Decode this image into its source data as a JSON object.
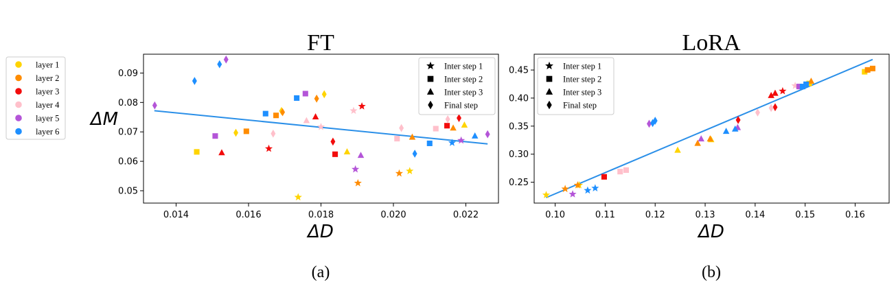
{
  "figure": {
    "panel_labels": [
      "(a)",
      "(b)"
    ],
    "legend_layers": [
      {
        "label": "layer 1",
        "color": "#FFD400"
      },
      {
        "label": "layer 2",
        "color": "#FF8C00"
      },
      {
        "label": "layer 3",
        "color": "#F20C0C"
      },
      {
        "label": "layer 4",
        "color": "#FFC0CB"
      },
      {
        "label": "layer 5",
        "color": "#B455D8"
      },
      {
        "label": "layer 6",
        "color": "#1E8FFF"
      }
    ],
    "legend_steps": [
      {
        "label": "Inter step 1",
        "marker": "star"
      },
      {
        "label": "Inter step 2",
        "marker": "square"
      },
      {
        "label": "Inter step 3",
        "marker": "triangle"
      },
      {
        "label": "Final step",
        "marker": "diamond"
      }
    ],
    "fit_line_color": "#2A8FE8"
  },
  "chart_data": [
    {
      "type": "scatter",
      "title": "FT",
      "xlabel": "ΔD",
      "ylabel": "ΔM",
      "xlim": [
        0.0131,
        0.0229
      ],
      "ylim": [
        0.0458,
        0.0964
      ],
      "xticks": [
        0.014,
        0.016,
        0.018,
        0.02,
        0.022
      ],
      "xtick_labels": [
        "0.014",
        "0.016",
        "0.018",
        "0.020",
        "0.022"
      ],
      "yticks": [
        0.05,
        0.06,
        0.07,
        0.08,
        0.09
      ],
      "ytick_labels": [
        "0.05",
        "0.06",
        "0.07",
        "0.08",
        "0.09"
      ],
      "grid": false,
      "legend_position": "top-right",
      "fit_line": [
        [
          0.0134,
          0.0772
        ],
        [
          0.0226,
          0.0659
        ]
      ],
      "points": [
        {
          "layer": 1,
          "step": "star",
          "x": 0.01737,
          "y": 0.0478
        },
        {
          "layer": 1,
          "step": "square",
          "x": 0.01457,
          "y": 0.0632
        },
        {
          "layer": 1,
          "step": "triangle",
          "x": 0.01872,
          "y": 0.0632
        },
        {
          "layer": 1,
          "step": "diamond",
          "x": 0.01565,
          "y": 0.0697
        },
        {
          "layer": 1,
          "step": "star",
          "x": 0.02045,
          "y": 0.0567
        },
        {
          "layer": 1,
          "step": "diamond",
          "x": 0.01691,
          "y": 0.0771
        },
        {
          "layer": 1,
          "step": "diamond",
          "x": 0.01809,
          "y": 0.0828
        },
        {
          "layer": 1,
          "step": "triangle",
          "x": 0.02196,
          "y": 0.0723
        },
        {
          "layer": 2,
          "step": "square",
          "x": 0.01594,
          "y": 0.0702
        },
        {
          "layer": 2,
          "step": "square",
          "x": 0.01676,
          "y": 0.0756
        },
        {
          "layer": 2,
          "step": "diamond",
          "x": 0.01694,
          "y": 0.0767
        },
        {
          "layer": 2,
          "step": "diamond",
          "x": 0.01788,
          "y": 0.0813
        },
        {
          "layer": 2,
          "step": "star",
          "x": 0.01902,
          "y": 0.0526
        },
        {
          "layer": 2,
          "step": "star",
          "x": 0.02016,
          "y": 0.0559
        },
        {
          "layer": 2,
          "step": "triangle",
          "x": 0.02052,
          "y": 0.0682
        },
        {
          "layer": 2,
          "step": "triangle",
          "x": 0.02165,
          "y": 0.0713
        },
        {
          "layer": 3,
          "step": "triangle",
          "x": 0.01526,
          "y": 0.0629
        },
        {
          "layer": 3,
          "step": "star",
          "x": 0.01656,
          "y": 0.0643
        },
        {
          "layer": 3,
          "step": "triangle",
          "x": 0.01785,
          "y": 0.0751
        },
        {
          "layer": 3,
          "step": "diamond",
          "x": 0.01833,
          "y": 0.0667
        },
        {
          "layer": 3,
          "step": "square",
          "x": 0.01839,
          "y": 0.0624
        },
        {
          "layer": 3,
          "step": "star",
          "x": 0.01913,
          "y": 0.0787
        },
        {
          "layer": 3,
          "step": "square",
          "x": 0.02148,
          "y": 0.0721
        },
        {
          "layer": 3,
          "step": "diamond",
          "x": 0.02181,
          "y": 0.0747
        },
        {
          "layer": 4,
          "step": "diamond",
          "x": 0.01668,
          "y": 0.0694
        },
        {
          "layer": 4,
          "step": "triangle",
          "x": 0.0176,
          "y": 0.0738
        },
        {
          "layer": 4,
          "step": "star",
          "x": 0.018,
          "y": 0.0717
        },
        {
          "layer": 4,
          "step": "star",
          "x": 0.0189,
          "y": 0.0772
        },
        {
          "layer": 4,
          "step": "square",
          "x": 0.0201,
          "y": 0.0677
        },
        {
          "layer": 4,
          "step": "diamond",
          "x": 0.02022,
          "y": 0.0713
        },
        {
          "layer": 4,
          "step": "square",
          "x": 0.02117,
          "y": 0.0711
        },
        {
          "layer": 4,
          "step": "diamond",
          "x": 0.0215,
          "y": 0.0743
        },
        {
          "layer": 5,
          "step": "diamond",
          "x": 0.01341,
          "y": 0.079
        },
        {
          "layer": 5,
          "step": "diamond",
          "x": 0.01538,
          "y": 0.0946
        },
        {
          "layer": 5,
          "step": "square",
          "x": 0.01508,
          "y": 0.0686
        },
        {
          "layer": 5,
          "step": "square",
          "x": 0.01757,
          "y": 0.083
        },
        {
          "layer": 5,
          "step": "star",
          "x": 0.01895,
          "y": 0.0573
        },
        {
          "layer": 5,
          "step": "triangle",
          "x": 0.0191,
          "y": 0.062
        },
        {
          "layer": 5,
          "step": "star",
          "x": 0.02187,
          "y": 0.0671
        },
        {
          "layer": 5,
          "step": "diamond",
          "x": 0.0226,
          "y": 0.0692
        },
        {
          "layer": 6,
          "step": "diamond",
          "x": 0.01451,
          "y": 0.0873
        },
        {
          "layer": 6,
          "step": "diamond",
          "x": 0.0152,
          "y": 0.093
        },
        {
          "layer": 6,
          "step": "square",
          "x": 0.01647,
          "y": 0.0762
        },
        {
          "layer": 6,
          "step": "square",
          "x": 0.01733,
          "y": 0.0815
        },
        {
          "layer": 6,
          "step": "diamond",
          "x": 0.02059,
          "y": 0.0626
        },
        {
          "layer": 6,
          "step": "square",
          "x": 0.021,
          "y": 0.0661
        },
        {
          "layer": 6,
          "step": "star",
          "x": 0.02162,
          "y": 0.0663
        },
        {
          "layer": 6,
          "step": "triangle",
          "x": 0.02225,
          "y": 0.0686
        }
      ]
    },
    {
      "type": "scatter",
      "title": "LoRA",
      "xlabel": "ΔD",
      "ylabel": "",
      "xlim": [
        0.0958,
        0.1668
      ],
      "ylim": [
        0.2128,
        0.4782
      ],
      "xticks": [
        0.1,
        0.11,
        0.12,
        0.13,
        0.14,
        0.15,
        0.16
      ],
      "xtick_labels": [
        "0.10",
        "0.11",
        "0.12",
        "0.13",
        "0.14",
        "0.15",
        "0.16"
      ],
      "yticks": [
        0.25,
        0.3,
        0.35,
        0.4,
        0.45
      ],
      "ytick_labels": [
        "0.25",
        "0.30",
        "0.35",
        "0.40",
        "0.45"
      ],
      "grid": false,
      "legend_position": "top-left",
      "fit_line": [
        [
          0.0982,
          0.2226
        ],
        [
          0.1635,
          0.4688
        ]
      ],
      "points": [
        {
          "layer": 1,
          "step": "star",
          "x": 0.0982,
          "y": 0.2273
        },
        {
          "layer": 1,
          "step": "star",
          "x": 0.1048,
          "y": 0.2448
        },
        {
          "layer": 1,
          "step": "triangle",
          "x": 0.1245,
          "y": 0.307
        },
        {
          "layer": 1,
          "step": "triangle",
          "x": 0.1312,
          "y": 0.3258
        },
        {
          "layer": 1,
          "step": "square",
          "x": 0.1508,
          "y": 0.426
        },
        {
          "layer": 1,
          "step": "square",
          "x": 0.1619,
          "y": 0.4469
        },
        {
          "layer": 2,
          "step": "star",
          "x": 0.102,
          "y": 0.2381
        },
        {
          "layer": 2,
          "step": "star",
          "x": 0.1045,
          "y": 0.2448
        },
        {
          "layer": 2,
          "step": "triangle",
          "x": 0.1285,
          "y": 0.3192
        },
        {
          "layer": 2,
          "step": "triangle",
          "x": 0.131,
          "y": 0.3272
        },
        {
          "layer": 2,
          "step": "triangle",
          "x": 0.1512,
          "y": 0.43
        },
        {
          "layer": 2,
          "step": "square",
          "x": 0.1625,
          "y": 0.4502
        },
        {
          "layer": 2,
          "step": "square",
          "x": 0.1635,
          "y": 0.4527
        },
        {
          "layer": 3,
          "step": "square",
          "x": 0.1098,
          "y": 0.2596
        },
        {
          "layer": 3,
          "step": "diamond",
          "x": 0.1366,
          "y": 0.3609
        },
        {
          "layer": 3,
          "step": "triangle",
          "x": 0.1432,
          "y": 0.4045
        },
        {
          "layer": 3,
          "step": "triangle",
          "x": 0.144,
          "y": 0.4085
        },
        {
          "layer": 3,
          "step": "star",
          "x": 0.1455,
          "y": 0.4125
        },
        {
          "layer": 3,
          "step": "diamond",
          "x": 0.144,
          "y": 0.3837
        },
        {
          "layer": 4,
          "step": "square",
          "x": 0.113,
          "y": 0.2689
        },
        {
          "layer": 4,
          "step": "square",
          "x": 0.1142,
          "y": 0.2716
        },
        {
          "layer": 4,
          "step": "diamond",
          "x": 0.1405,
          "y": 0.3743
        },
        {
          "layer": 4,
          "step": "diamond",
          "x": 0.1432,
          "y": 0.3823
        },
        {
          "layer": 4,
          "step": "star",
          "x": 0.148,
          "y": 0.422
        },
        {
          "layer": 5,
          "step": "star",
          "x": 0.1035,
          "y": 0.2287
        },
        {
          "layer": 5,
          "step": "diamond",
          "x": 0.1188,
          "y": 0.3542
        },
        {
          "layer": 5,
          "step": "triangle",
          "x": 0.1292,
          "y": 0.3272
        },
        {
          "layer": 5,
          "step": "triangle",
          "x": 0.1365,
          "y": 0.3474
        },
        {
          "layer": 5,
          "step": "square",
          "x": 0.1488,
          "y": 0.4206
        },
        {
          "layer": 6,
          "step": "star",
          "x": 0.1065,
          "y": 0.2354
        },
        {
          "layer": 6,
          "step": "star",
          "x": 0.108,
          "y": 0.2394
        },
        {
          "layer": 6,
          "step": "diamond",
          "x": 0.1195,
          "y": 0.3555
        },
        {
          "layer": 6,
          "step": "diamond",
          "x": 0.12,
          "y": 0.3596
        },
        {
          "layer": 6,
          "step": "triangle",
          "x": 0.1342,
          "y": 0.3407
        },
        {
          "layer": 6,
          "step": "triangle",
          "x": 0.136,
          "y": 0.3447
        },
        {
          "layer": 6,
          "step": "square",
          "x": 0.1495,
          "y": 0.4206
        },
        {
          "layer": 6,
          "step": "square",
          "x": 0.1502,
          "y": 0.4246
        }
      ]
    }
  ]
}
